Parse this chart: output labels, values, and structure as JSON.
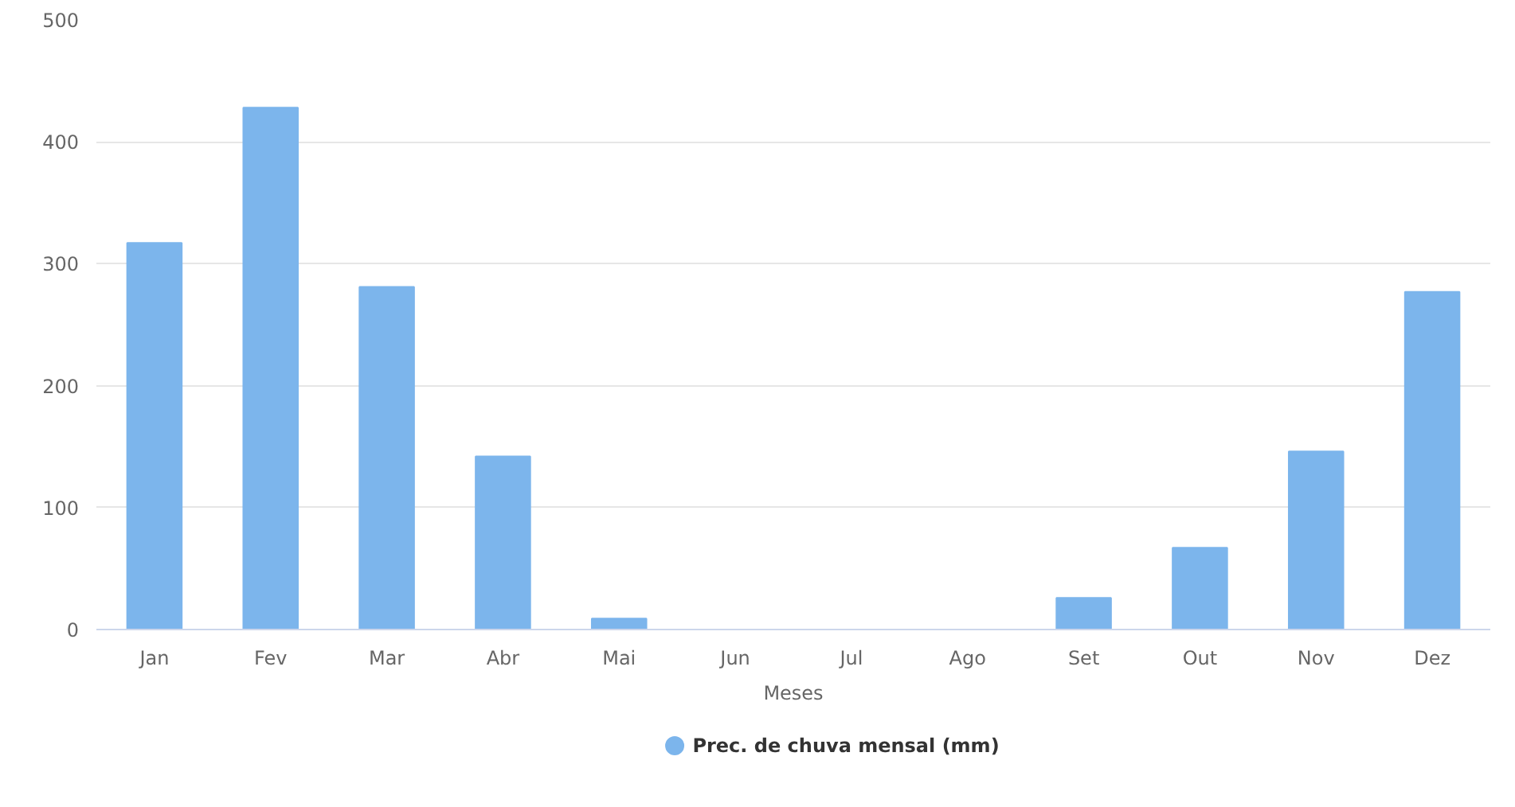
{
  "chart_data": {
    "type": "bar",
    "xlabel": "Meses",
    "categories": [
      "Jan",
      "Fev",
      "Mar",
      "Abr",
      "Mai",
      "Jun",
      "Jul",
      "Ago",
      "Set",
      "Out",
      "Nov",
      "Dez"
    ],
    "series": [
      {
        "name": "Prec. de chuva mensal (mm)",
        "color": "#7cb5ec",
        "values": [
          317,
          428,
          281,
          142,
          9,
          0,
          0,
          0,
          26,
          67,
          146,
          277
        ]
      }
    ],
    "ylim": [
      0,
      500
    ],
    "yticks": [
      0,
      100,
      200,
      300,
      400,
      500
    ],
    "grid": "y",
    "legend": "bottom"
  }
}
